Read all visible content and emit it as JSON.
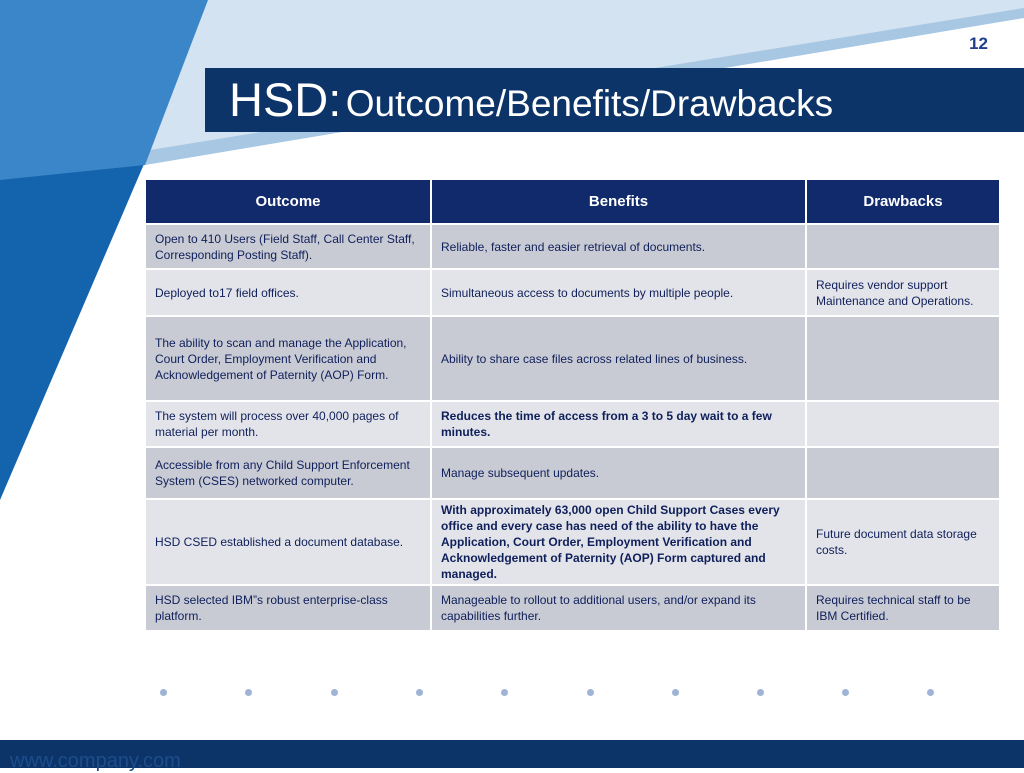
{
  "slide": {
    "number": "12"
  },
  "title": {
    "main": "HSD:",
    "sub": "Outcome/Benefits/Drawbacks"
  },
  "table": {
    "headers": [
      "Outcome",
      "Benefits",
      "Drawbacks"
    ],
    "rows": [
      {
        "outcome": "Open to 410 Users (Field Staff, Call Center Staff, Corresponding Posting Staff).",
        "benefit": "Reliable, faster and easier retrieval of documents.",
        "drawback": ""
      },
      {
        "outcome": "Deployed to17 field offices.",
        "benefit": "Simultaneous access to documents by multiple people.",
        "drawback": "Requires vendor support Maintenance and Operations."
      },
      {
        "outcome": "The ability to scan and manage the Application, Court Order, Employment Verification and Acknowledgement of Paternity (AOP) Form.",
        "benefit": "Ability to share case files across related lines of business.",
        "drawback": ""
      },
      {
        "outcome": "The system will process over 40,000 pages of material per month.",
        "benefit": "Reduces the time of access from a 3 to 5 day wait to a few minutes.",
        "drawback": ""
      },
      {
        "outcome": "Accessible  from any Child Support Enforcement System (CSES) networked computer.",
        "benefit": "Manage subsequent updates.",
        "drawback": ""
      },
      {
        "outcome": "HSD CSED established a document database.",
        "benefit": "With approximately 63,000 open Child Support Cases every office and every case has need of the ability to have the Application, Court Order, Employment Verification and Acknowledgement of Paternity (AOP) Form captured and managed.",
        "drawback": "Future document  data storage costs."
      },
      {
        "outcome": "HSD selected IBM”s robust enterprise-class platform.",
        "benefit": "Manageable  to rollout to additional users, and/or expand its capabilities further.",
        "drawback": "Requires technical staff to be IBM Certified."
      }
    ]
  },
  "footer": {
    "url": "www.company.com"
  },
  "colors": {
    "navy": "#0c3468",
    "header": "#112a6b",
    "row_dark": "#c9cbd4",
    "row_light": "#e3e4ea",
    "accent_blue": "#1565b0"
  }
}
